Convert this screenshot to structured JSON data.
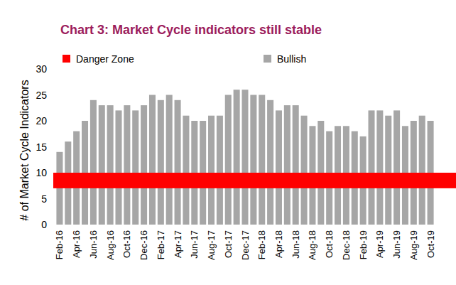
{
  "chart_data": {
    "type": "bar",
    "title": "Chart 3: Market Cycle indicators still stable",
    "y_label": "# of Market Cycle Indicators",
    "categories": [
      "Feb-16",
      null,
      "Apr-16",
      null,
      "Jun-16",
      null,
      "Aug-16",
      null,
      "Oct-16",
      null,
      "Dec-16",
      null,
      "Feb-17",
      null,
      "Apr-17",
      null,
      "Jun-17",
      null,
      "Aug-17",
      null,
      "Oct-17",
      null,
      "Dec-17",
      null,
      "Feb-18",
      null,
      "Apr-18",
      null,
      "Jun-18",
      null,
      "Aug-18",
      null,
      "Oct-18",
      null,
      "Dec-18",
      null,
      "Feb-19",
      null,
      "Apr-19",
      null,
      "Jun-19",
      null,
      "Aug-19",
      null,
      "Oct-19"
    ],
    "series": [
      {
        "name": "Bullish",
        "color": "#a6a6a6",
        "values": [
          14,
          16,
          18,
          20,
          24,
          23,
          23,
          22,
          23,
          22,
          23,
          25,
          24,
          25,
          24,
          21,
          20,
          20,
          21,
          21,
          25,
          26,
          26,
          25,
          25,
          24,
          22,
          23,
          23,
          21,
          19,
          20,
          18,
          19,
          19,
          18,
          17,
          22,
          22,
          21,
          22,
          19,
          20,
          21,
          20
        ]
      }
    ],
    "danger_zone": {
      "name": "Danger Zone",
      "color": "#ff0000",
      "range": [
        7,
        10
      ]
    },
    "ylim": [
      0,
      30
    ],
    "yticks": [
      0,
      5,
      10,
      15,
      20,
      25,
      30
    ],
    "grid": false
  }
}
